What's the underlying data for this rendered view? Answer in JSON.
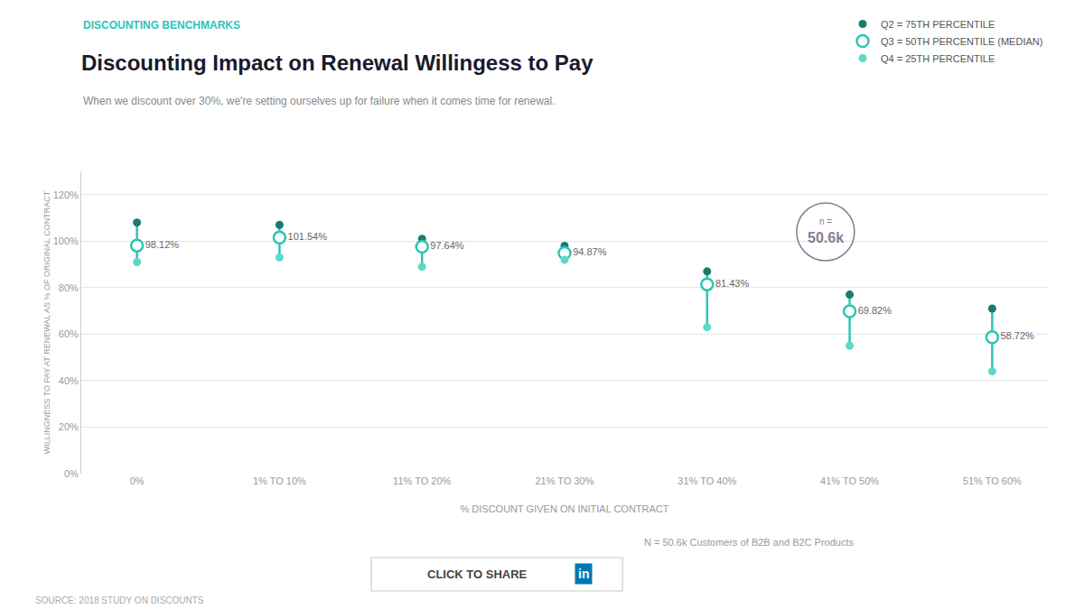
{
  "chart_data": {
    "type": "scatter",
    "title": "Discounting Impact on Renewal Willingess to Pay",
    "subtitle": "When we discount over 30%, we're setting ourselves up for failure when it comes time for renewal.",
    "xlabel": "% DISCOUNT GIVEN ON INITIAL CONTRACT",
    "ylabel": "WILLINGNESS TO PAY AT RENEWAL AS % OF ORIGINAL CONTRACT",
    "annotations": [
      "DISCOUNTING BENCHMARKS",
      "n =",
      "50.6k",
      "SOURCE: 2018 STUDY ON DISCOUNTS",
      "N = 50.6k Customers of B2B and B2C Products",
      "CLICK TO SHARE",
      "in"
    ],
    "categories": [
      "0%",
      "1% TO 10%",
      "11% TO 20%",
      "21% TO 30%",
      "31% TO 40%",
      "41% TO 50%",
      "51% TO 60%"
    ],
    "series": [
      {
        "name": "Q2 = 75TH PERCENTILE",
        "color": "#1a7a6e",
        "marker": "circle",
        "values": [
          108,
          107,
          101,
          98,
          87,
          77,
          71
        ]
      },
      {
        "name": "Q3 = 50TH PERCENTILE (MEDIAN)",
        "color": "#2ec4b6",
        "marker": "open circle",
        "values": [
          98.12,
          101.54,
          97.64,
          94.87,
          81.43,
          69.82,
          58.72
        ],
        "data_labels": true,
        "value_labels": [
          "98.12%",
          "101.54%",
          "97.64%",
          "94.87%",
          "81.43%",
          "69.82%",
          "58.72%"
        ]
      },
      {
        "name": "Q4 = 25TH PERCENTILE",
        "color": "#5dd9c9",
        "marker": "circle",
        "values": [
          91,
          93,
          89,
          92,
          63,
          55,
          44
        ]
      }
    ],
    "ylim": [
      0,
      130
    ],
    "yticks": [
      {
        "value": 0,
        "label": "0%"
      },
      {
        "value": 20,
        "label": "20%"
      },
      {
        "value": 40,
        "label": "40%"
      },
      {
        "value": 60,
        "label": "60%"
      },
      {
        "value": 80,
        "label": "80%"
      },
      {
        "value": 100,
        "label": "100%"
      },
      {
        "value": 120,
        "label": "120%"
      }
    ],
    "grid": true,
    "legend": "top right"
  }
}
